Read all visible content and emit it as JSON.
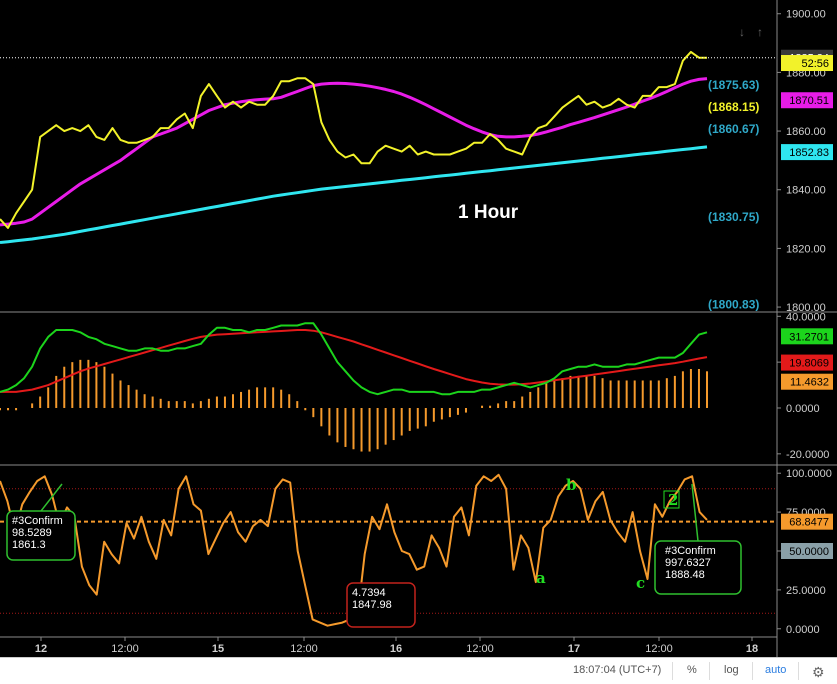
{
  "chart_data": [
    {
      "type": "line",
      "timeframe_label": "1 Hour",
      "y_ticks": [
        1800,
        1820,
        1840,
        1860,
        1880,
        1900
      ],
      "y_tick_labels": [
        "1800.00",
        "1820.00",
        "1840.00",
        "1860.00",
        "1880.00",
        "1900.00"
      ],
      "ylim": [
        1799,
        1904
      ],
      "series": [
        {
          "name": "price",
          "color": "#f2f22a",
          "values": [
            1830,
            1827,
            1832,
            1836,
            1840,
            1858,
            1860,
            1862,
            1860,
            1861,
            1860,
            1862,
            1858,
            1857,
            1861,
            1857,
            1856,
            1856,
            1857,
            1858,
            1861,
            1861,
            1864,
            1866,
            1861,
            1872,
            1876,
            1872,
            1868,
            1870,
            1868,
            1870,
            1869,
            1869,
            1872,
            1877,
            1877,
            1878,
            1878,
            1876,
            1863,
            1857,
            1853,
            1851,
            1852,
            1849,
            1849,
            1853,
            1855,
            1854,
            1853,
            1855,
            1852,
            1853,
            1852,
            1852,
            1852,
            1853,
            1854,
            1856,
            1856,
            1859,
            1857,
            1854,
            1853,
            1852,
            1858,
            1861,
            1862,
            1865,
            1868,
            1870,
            1872,
            1869,
            1870,
            1868,
            1869,
            1871,
            1869,
            1868,
            1872,
            1872,
            1875,
            1875,
            1876,
            1884,
            1887,
            1885,
            1885
          ]
        },
        {
          "name": "ma_fast",
          "color": "#e81ce8",
          "values": [
            1828,
            1828.3,
            1828.6,
            1829,
            1830,
            1832,
            1834,
            1836,
            1838,
            1840,
            1842,
            1843.6,
            1845.2,
            1846.8,
            1848.4,
            1850,
            1852,
            1854,
            1856,
            1858,
            1859,
            1860,
            1861,
            1862.5,
            1864,
            1865.5,
            1867,
            1868,
            1869,
            1869.5,
            1870,
            1870.4,
            1870.7,
            1870.9,
            1871,
            1871.5,
            1872.5,
            1873.5,
            1874.5,
            1875.5,
            1876,
            1876.2,
            1876.3,
            1876.2,
            1876,
            1875.7,
            1875.3,
            1874.8,
            1874.2,
            1873.5,
            1872.6,
            1871.5,
            1870.3,
            1869,
            1867.6,
            1866.2,
            1864.8,
            1863.4,
            1862,
            1860.8,
            1859.7,
            1858.8,
            1858.2,
            1858,
            1858,
            1858.2,
            1858.5,
            1859,
            1859.7,
            1860.5,
            1861.3,
            1862.2,
            1863,
            1863.8,
            1864.6,
            1865.5,
            1866.4,
            1867.3,
            1868.2,
            1869.2,
            1870.2,
            1871.2,
            1872.3,
            1873.5,
            1874.8,
            1876,
            1877,
            1877.6,
            1877.9
          ]
        },
        {
          "name": "ma_slow",
          "color": "#2fe6f0",
          "values": [
            1822,
            1822.3,
            1822.6,
            1822.9,
            1823.2,
            1823.6,
            1824,
            1824.4,
            1824.8,
            1825.3,
            1825.8,
            1826.3,
            1826.8,
            1827.3,
            1827.8,
            1828.3,
            1828.8,
            1829.3,
            1829.8,
            1830.3,
            1830.8,
            1831.3,
            1831.8,
            1832.3,
            1832.8,
            1833.3,
            1833.8,
            1834.3,
            1834.8,
            1835.3,
            1835.8,
            1836.3,
            1836.8,
            1837.3,
            1837.8,
            1838.2,
            1838.6,
            1839,
            1839.4,
            1839.8,
            1840.2,
            1840.5,
            1840.8,
            1841.1,
            1841.4,
            1841.7,
            1842,
            1842.3,
            1842.6,
            1842.9,
            1843.2,
            1843.5,
            1843.8,
            1844.1,
            1844.4,
            1844.7,
            1845,
            1845.3,
            1845.6,
            1845.9,
            1846.2,
            1846.5,
            1846.8,
            1847.1,
            1847.4,
            1847.7,
            1848,
            1848.3,
            1848.6,
            1848.9,
            1849.2,
            1849.5,
            1849.8,
            1850.1,
            1850.4,
            1850.7,
            1851,
            1851.3,
            1851.6,
            1851.9,
            1852.2,
            1852.5,
            1852.8,
            1853.1,
            1853.4,
            1853.7,
            1854,
            1854.3,
            1854.6
          ]
        }
      ],
      "last_price": {
        "value": "1885.34",
        "color": "#3a3a3a"
      },
      "price_labels": [
        {
          "value": "52:56",
          "color": "#f2f22a",
          "y": 1883.2
        },
        {
          "value": "1870.51",
          "color": "#e81ce8",
          "y": 1870.51
        },
        {
          "value": "1852.83",
          "color": "#2fe6f0",
          "y": 1852.83
        }
      ],
      "fib_levels": [
        {
          "text": "(1875.63)",
          "color": "#2fa8c8",
          "y": 1875.63
        },
        {
          "text": "(1868.15)",
          "color": "#f2f22a",
          "y": 1868.15
        },
        {
          "text": "(1860.67)",
          "color": "#2fa8c8",
          "y": 1860.67
        },
        {
          "text": "(1830.75)",
          "color": "#2fa8c8",
          "y": 1830.75
        },
        {
          "text": "(1800.83)",
          "color": "#2fa8c8",
          "y": 1800.83
        }
      ]
    },
    {
      "type": "bar",
      "y_ticks": [
        -20,
        0,
        20,
        40
      ],
      "y_tick_labels": [
        "-20.0000",
        "0.0000",
        "20.0000",
        "40.0000"
      ],
      "ylim": [
        -24,
        41
      ],
      "histogram": {
        "color": "#f59a2c",
        "values": [
          -1,
          -1,
          -1,
          0,
          2,
          5,
          9,
          14,
          18,
          20,
          21,
          21,
          20,
          18,
          15,
          12,
          10,
          8,
          6,
          5,
          4,
          3,
          3,
          3,
          2,
          3,
          4,
          5,
          5,
          6,
          7,
          8,
          9,
          9,
          9,
          8,
          6,
          3,
          -1,
          -4,
          -8,
          -12,
          -15,
          -17,
          -18,
          -19,
          -19,
          -18,
          -16,
          -14,
          -12,
          -10,
          -9,
          -8,
          -6,
          -5,
          -4,
          -3,
          -2,
          0,
          1,
          1,
          2,
          3,
          3,
          5,
          7,
          9,
          11,
          12,
          13,
          14,
          14,
          14,
          14,
          13,
          12,
          12,
          12,
          12,
          12,
          12,
          12,
          13,
          14,
          16,
          17,
          17,
          16
        ]
      },
      "series": [
        {
          "name": "macd",
          "color": "#1cd41c",
          "values": [
            7,
            8,
            10,
            13,
            18,
            26,
            31,
            34,
            34,
            34,
            33,
            31,
            30,
            28,
            27,
            26,
            25,
            25,
            26,
            26,
            25,
            25,
            26,
            26,
            27,
            28,
            32,
            35,
            35,
            34,
            34,
            33,
            34,
            34,
            35,
            36,
            36,
            36,
            37,
            37,
            32,
            26,
            20,
            16,
            12,
            9,
            7,
            6,
            7,
            8,
            8,
            7,
            7,
            7,
            7,
            6,
            6,
            7,
            7,
            7,
            8,
            8,
            9,
            10,
            11,
            10,
            9,
            10,
            11,
            13,
            16,
            17,
            18,
            18,
            19,
            18,
            18,
            18,
            19,
            19,
            20,
            21,
            22,
            22,
            22,
            24,
            28,
            32,
            33
          ]
        },
        {
          "name": "signal",
          "color": "#e31a1a",
          "values": [
            7,
            7,
            7,
            7.5,
            8,
            9,
            10,
            11.5,
            13,
            14.5,
            16,
            17.2,
            18.2,
            19.2,
            20.2,
            21.2,
            22.2,
            23.2,
            24.2,
            25.2,
            26.2,
            27.2,
            28.2,
            29.2,
            30.2,
            31,
            31.5,
            32,
            32.2,
            32.4,
            32.6,
            32.8,
            33,
            33.2,
            33.4,
            33.6,
            33.8,
            34,
            34,
            33.7,
            33,
            32,
            31,
            30,
            29,
            27.8,
            26.6,
            25.4,
            24.2,
            23,
            21.8,
            20.6,
            19.4,
            18.2,
            17,
            15.9,
            14.8,
            13.7,
            12.6,
            11.8,
            11.1,
            10.6,
            10.3,
            10.2,
            10.2,
            10.4,
            10.7,
            11.1,
            11.6,
            12.1,
            12.6,
            13.1,
            13.6,
            14.1,
            14.6,
            15.1,
            15.6,
            16.1,
            16.6,
            17.1,
            17.6,
            18.1,
            18.6,
            19.1,
            19.6,
            20.2,
            20.9,
            21.6,
            22.2
          ]
        }
      ],
      "value_labels": [
        {
          "value": "31.2701",
          "color": "#1cd41c",
          "y": 31.27
        },
        {
          "value": "19.8069",
          "color": "#e31a1a",
          "y": 19.81
        },
        {
          "value": "11.4632",
          "color": "#f59a2c",
          "y": 11.46
        }
      ]
    },
    {
      "type": "line",
      "y_ticks": [
        0,
        25,
        50,
        75,
        100
      ],
      "y_tick_labels": [
        "0.0000",
        "25.0000",
        "50.0000",
        "75.0000",
        "100.0000"
      ],
      "ylim": [
        -4,
        104
      ],
      "levels": [
        {
          "y": 90,
          "color": "#a31818",
          "style": "dotted"
        },
        {
          "y": 68.8477,
          "color": "#f59a2c",
          "style": "dashed"
        },
        {
          "y": 10,
          "color": "#a31818",
          "style": "dotted"
        }
      ],
      "series": [
        {
          "name": "oscillator",
          "color": "#f59a2c",
          "values": [
            95,
            82,
            62,
            80,
            88,
            95,
            98,
            86,
            67,
            78,
            72,
            40,
            28,
            22,
            56,
            48,
            42,
            68,
            58,
            72,
            56,
            45,
            70,
            60,
            90,
            98,
            80,
            76,
            48,
            58,
            68,
            75,
            62,
            56,
            66,
            70,
            66,
            90,
            96,
            94,
            50,
            28,
            6,
            4,
            2,
            3,
            4,
            6,
            6,
            48,
            72,
            64,
            80,
            62,
            50,
            48,
            38,
            40,
            60,
            52,
            40,
            72,
            78,
            60,
            92,
            98,
            95,
            99,
            90,
            38,
            60,
            52,
            30,
            65,
            70,
            85,
            92,
            95,
            90,
            70,
            82,
            88,
            70,
            62,
            56,
            75,
            50,
            32,
            80,
            72,
            82,
            88,
            96,
            98,
            75,
            70
          ]
        }
      ],
      "value_labels": [
        {
          "value": "68.8477",
          "color": "#f59a2c",
          "y": 68.8477
        },
        {
          "value": "50.0000",
          "color": "#8aa0a8",
          "y": 50
        }
      ],
      "annotations": [
        {
          "lines": [
            "#3Confirm",
            "98.5289",
            "1861.3"
          ],
          "border": "#2fbf2f"
        },
        {
          "lines": [
            "4.7394",
            "1847.98"
          ],
          "border": "#c2221c"
        },
        {
          "lines": [
            "#3Confirm",
            "997.6327",
            "1888.48"
          ],
          "border": "#2fbf2f"
        }
      ],
      "wave_labels": [
        "a",
        "b",
        "c",
        "2"
      ]
    }
  ],
  "x_axis": {
    "labels": [
      "12",
      "12:00",
      "15",
      "12:00",
      "16",
      "12:00",
      "17",
      "12:00",
      "18"
    ],
    "bold": [
      true,
      false,
      true,
      false,
      true,
      false,
      true,
      false,
      true
    ]
  },
  "status_bar": {
    "time": "18:07:04 (UTC+7)",
    "percent": "%",
    "log": "log",
    "auto": "auto"
  }
}
